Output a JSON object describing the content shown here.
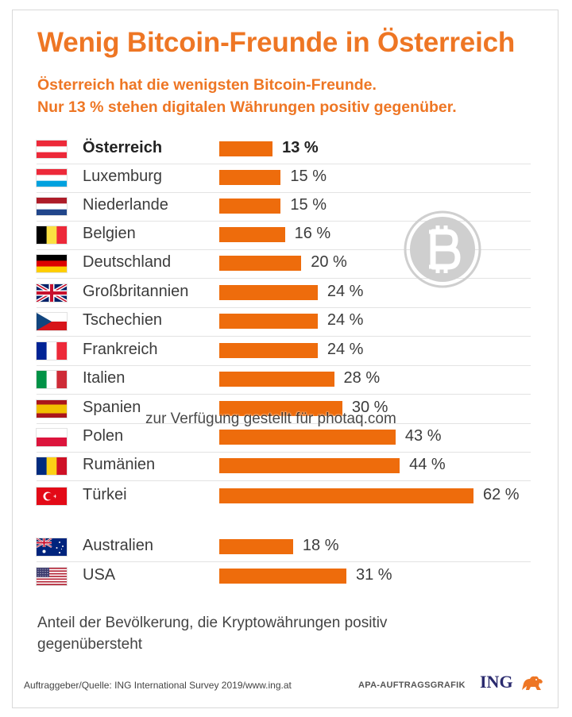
{
  "title": "Wenig Bitcoin-Freunde in Österreich",
  "subtitle_line1": "Österreich hat die wenigsten Bitcoin-Freunde.",
  "subtitle_line2": "Nur 13 % stehen digitalen Währungen positiv gegenüber.",
  "chart_data": {
    "type": "bar",
    "orientation": "horizontal",
    "title": "Wenig Bitcoin-Freunde in Österreich",
    "xlabel": "Anteil der Bevölkerung, die Kryptowährungen positiv gegenübersteht",
    "unit": "%",
    "xlim": [
      0,
      62
    ],
    "grid": false,
    "highlight": "Österreich",
    "categories": [
      "Österreich",
      "Luxemburg",
      "Niederlande",
      "Belgien",
      "Deutschland",
      "Großbritannien",
      "Tschechien",
      "Frankreich",
      "Italien",
      "Spanien",
      "Polen",
      "Rumänien",
      "Türkei",
      "Australien",
      "USA"
    ],
    "values": [
      13,
      15,
      15,
      16,
      20,
      24,
      24,
      24,
      28,
      30,
      43,
      44,
      62,
      18,
      31
    ],
    "labels": [
      "13 %",
      "15 %",
      "15 %",
      "16 %",
      "20 %",
      "24 %",
      "24 %",
      "24 %",
      "28 %",
      "30 %",
      "43 %",
      "44 %",
      "62 %",
      "18 %",
      "31 %"
    ],
    "colors": {
      "bar": "#ee6c0c",
      "title": "#ee7624"
    }
  },
  "flags": [
    "austria-flag",
    "luxembourg-flag",
    "netherlands-flag",
    "belgium-flag",
    "germany-flag",
    "uk-flag",
    "czech-flag",
    "france-flag",
    "italy-flag",
    "spain-flag",
    "poland-flag",
    "romania-flag",
    "turkey-flag",
    "australia-flag",
    "usa-flag"
  ],
  "note": "Anteil der Bevölkerung, die Kryptowährungen positiv gegenübersteht",
  "source": "Auftraggeber/Quelle: ING International Survey 2019/www.ing.at",
  "credit": "APA-AUFTRAGSGRAFIK",
  "brand": "ING",
  "watermark": "zur Verfügung gestellt für photaq.com",
  "icons": {
    "coin": "bitcoin-icon",
    "lion": "ing-lion-logo"
  }
}
